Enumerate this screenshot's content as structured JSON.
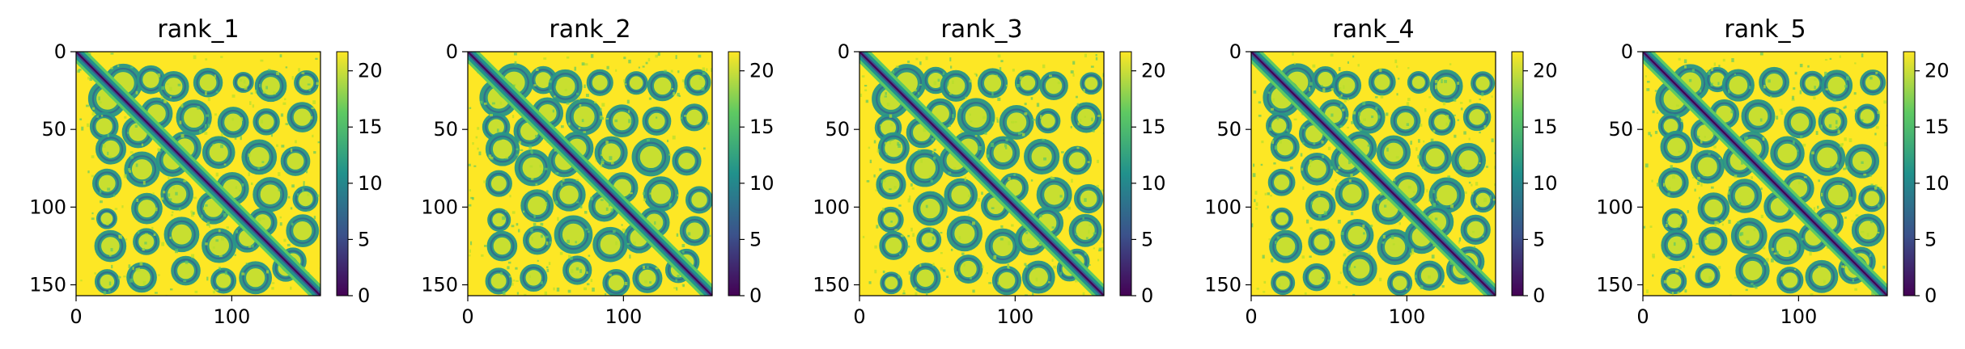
{
  "colormap": {
    "name": "viridis",
    "stops": [
      "#440154",
      "#3b528b",
      "#21918c",
      "#5ec962",
      "#fde725"
    ]
  },
  "chart_data": [
    {
      "type": "heatmap",
      "title": "rank_1",
      "xlim": [
        0,
        157
      ],
      "ylim": [
        157,
        0
      ],
      "x_ticks": [
        0,
        100
      ],
      "y_ticks": [
        0,
        50,
        100,
        150
      ],
      "value_range": [
        0,
        21.7
      ],
      "colorbar_ticks": [
        0,
        5,
        10,
        15,
        20
      ],
      "description_values": "pairwise distance matrix; low values (dark) along the diagonal and in band-shaped contact regions, saturated high values (yellow) elsewhere"
    },
    {
      "type": "heatmap",
      "title": "rank_2",
      "xlim": [
        0,
        157
      ],
      "ylim": [
        157,
        0
      ],
      "x_ticks": [
        0,
        100
      ],
      "y_ticks": [
        0,
        50,
        100,
        150
      ],
      "value_range": [
        0,
        21.7
      ],
      "colorbar_ticks": [
        0,
        5,
        10,
        15,
        20
      ]
    },
    {
      "type": "heatmap",
      "title": "rank_3",
      "xlim": [
        0,
        157
      ],
      "ylim": [
        157,
        0
      ],
      "x_ticks": [
        0,
        100
      ],
      "y_ticks": [
        0,
        50,
        100,
        150
      ],
      "value_range": [
        0,
        21.7
      ],
      "colorbar_ticks": [
        0,
        5,
        10,
        15,
        20
      ]
    },
    {
      "type": "heatmap",
      "title": "rank_4",
      "xlim": [
        0,
        157
      ],
      "ylim": [
        157,
        0
      ],
      "x_ticks": [
        0,
        100
      ],
      "y_ticks": [
        0,
        50,
        100,
        150
      ],
      "value_range": [
        0,
        21.7
      ],
      "colorbar_ticks": [
        0,
        5,
        10,
        15,
        20
      ]
    },
    {
      "type": "heatmap",
      "title": "rank_5",
      "xlim": [
        0,
        157
      ],
      "ylim": [
        157,
        0
      ],
      "x_ticks": [
        0,
        100
      ],
      "y_ticks": [
        0,
        50,
        100,
        150
      ],
      "value_range": [
        0,
        21.7
      ],
      "colorbar_ticks": [
        0,
        5,
        10,
        15,
        20
      ]
    }
  ]
}
